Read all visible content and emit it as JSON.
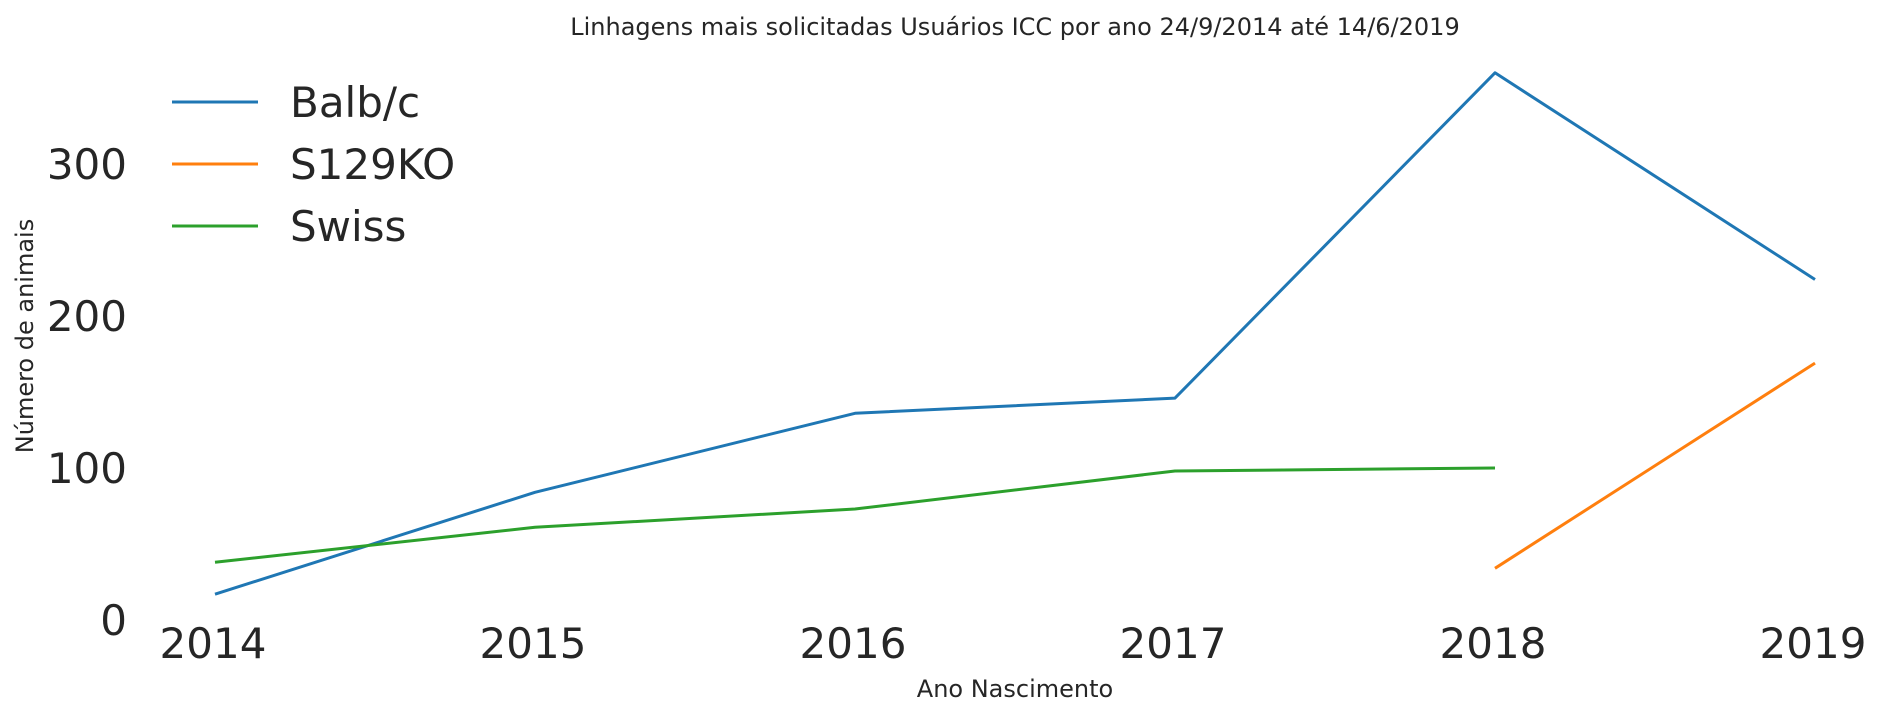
{
  "chart_data": {
    "type": "line",
    "title": "Linhagens mais solicitadas Usuários ICC por ano 24/9/2014 até 14/6/2019",
    "xlabel": "Ano Nascimento",
    "ylabel": "Número de animais",
    "x": [
      2014,
      2015,
      2016,
      2017,
      2018,
      2019
    ],
    "x_tick_labels": [
      "2014",
      "2015",
      "2016",
      "2017",
      "2018",
      "2019"
    ],
    "y_ticks": [
      0,
      100,
      200,
      300
    ],
    "y_tick_labels": [
      "0",
      "100",
      "200",
      "300"
    ],
    "xlim": [
      2014,
      2019
    ],
    "ylim": [
      0,
      360
    ],
    "grid": false,
    "legend_position": "top-left",
    "series": [
      {
        "name": "Balb/c",
        "color": "#1f77b4",
        "values": [
          17,
          84,
          136,
          146,
          360,
          224
        ]
      },
      {
        "name": "S129KO",
        "color": "#ff7f0e",
        "values": [
          null,
          null,
          null,
          null,
          34,
          169
        ]
      },
      {
        "name": "Swiss",
        "color": "#2ca02c",
        "values": [
          38,
          61,
          73,
          98,
          100,
          null
        ]
      }
    ]
  }
}
